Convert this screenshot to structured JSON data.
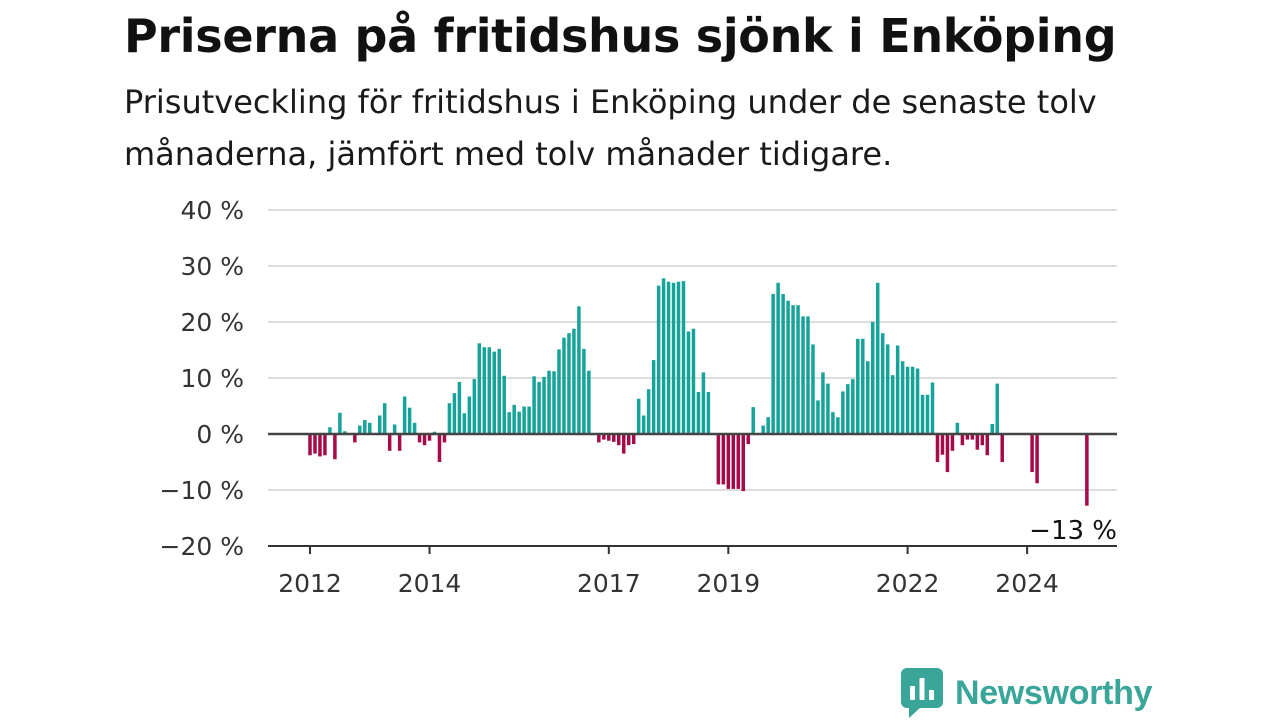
{
  "header": {
    "title": "Priserna på fritidshus sjönk i Enköping",
    "subtitle": "Prisutveckling för fritidshus i Enköping under de senaste tolv månaderna, jämfört med tolv månader tidigare."
  },
  "brand": {
    "name": "Newsworthy",
    "icon": "newsworthy-logo-icon"
  },
  "colors": {
    "positive": "#16a399",
    "negative": "#a50b49",
    "grid": "#dddddd",
    "zero_line": "#444444",
    "brand": "#3aa69a"
  },
  "chart_data": {
    "type": "bar",
    "ylim": [
      -20,
      40
    ],
    "y_ticks": [
      40,
      30,
      20,
      10,
      0,
      -10,
      -20
    ],
    "y_tick_labels": [
      "40 %",
      "30 %",
      "20 %",
      "10 %",
      "0 %",
      "−10 %",
      "−20 %"
    ],
    "x_ticks": [
      {
        "label": "2012",
        "index": 0
      },
      {
        "label": "2014",
        "index": 24
      },
      {
        "label": "2017",
        "index": 60
      },
      {
        "label": "2019",
        "index": 84
      },
      {
        "label": "2022",
        "index": 120
      },
      {
        "label": "2024",
        "index": 144
      }
    ],
    "period": "månadsvis 2012–2025",
    "values": [
      -3.8,
      -3.5,
      -4.0,
      -3.8,
      1.2,
      -4.5,
      3.8,
      0.5,
      null,
      -1.5,
      1.5,
      2.5,
      2.0,
      null,
      3.3,
      5.5,
      -3.0,
      1.7,
      -3.0,
      6.7,
      4.7,
      2.0,
      -1.5,
      -2.0,
      -1.2,
      0.4,
      -5.0,
      -1.5,
      5.5,
      7.3,
      9.3,
      3.7,
      6.7,
      9.8,
      16.2,
      15.5,
      15.5,
      14.7,
      15.2,
      10.4,
      3.9,
      5.2,
      4.0,
      4.9,
      4.9,
      10.3,
      9.3,
      10.2,
      11.3,
      11.2,
      15.1,
      17.2,
      18.0,
      18.8,
      22.8,
      15.2,
      11.3,
      null,
      -1.5,
      -1.0,
      -1.2,
      -1.4,
      -2.0,
      -3.5,
      -2.0,
      -1.8,
      6.3,
      3.3,
      8.0,
      13.2,
      26.5,
      27.8,
      27.2,
      27.0,
      27.2,
      27.3,
      18.3,
      18.8,
      7.5,
      11.0,
      7.5,
      null,
      -9.0,
      -9.0,
      -9.8,
      -9.8,
      -9.8,
      -10.2,
      -1.8,
      4.8,
      null,
      1.5,
      3.0,
      25.0,
      27.0,
      25.0,
      23.8,
      23.0,
      23.0,
      21.0,
      21.0,
      16.0,
      6.0,
      11.0,
      9.0,
      3.9,
      3.0,
      7.6,
      8.9,
      9.8,
      17.0,
      17.0,
      13.0,
      20.0,
      27.0,
      18.0,
      16.0,
      10.5,
      15.8,
      13.0,
      12.0,
      12.0,
      11.7,
      7.0,
      7.0,
      9.2,
      -5.0,
      -3.7,
      -6.8,
      -3.0,
      2.0,
      -2.0,
      -1.0,
      -1.0,
      -2.8,
      -2.0,
      -3.8,
      1.8,
      9.0,
      -5.0,
      null,
      null,
      null,
      null,
      null,
      -6.8,
      -8.8,
      null,
      null,
      null,
      null,
      null,
      null,
      null,
      null,
      null,
      -12.8
    ],
    "annotation": {
      "label": "−13 %",
      "index": 156
    }
  }
}
